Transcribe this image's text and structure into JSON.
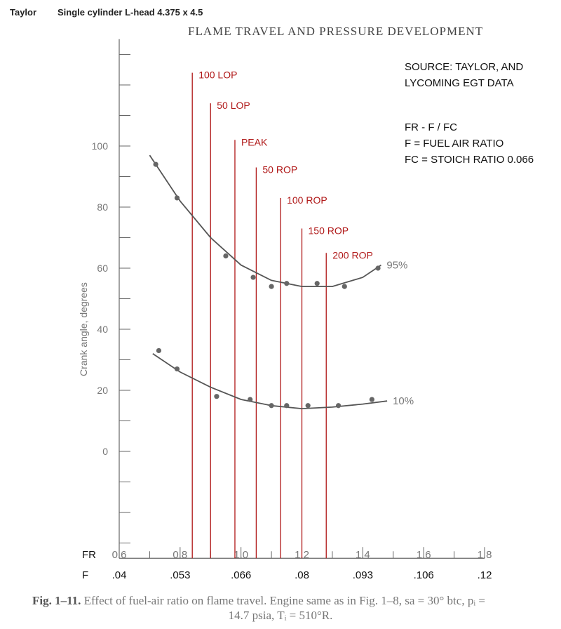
{
  "header": {
    "author": "Taylor",
    "engine": "Single cylinder L-head 4.375 x 4.5"
  },
  "notes": {
    "source_line1": "SOURCE: TAYLOR, AND",
    "source_line2": "LYCOMING EGT DATA",
    "def_fr": "FR - F / FC",
    "def_f": "F = FUEL AIR RATIO",
    "def_fc": "FC = STOICH RATIO 0.066"
  },
  "caption": {
    "fig_label": "Fig. 1–11.",
    "line1_text": " Effect of fuel-air ratio on flame travel. Engine same as in Fig. 1–8, sa = 30° btc, pᵢ =",
    "line2": "14.7 psia, Tᵢ = 510°R."
  },
  "colors": {
    "marker_line": "#b01818",
    "marker_text": "#b01818",
    "curve": "#555555",
    "axis": "#666666"
  },
  "chart_data": {
    "type": "scatter",
    "title": "FLAME TRAVEL AND PRESSURE DEVELOPMENT",
    "xlabel": "",
    "ylabel": "Crank angle, degrees",
    "xlim": [
      0.6,
      1.8
    ],
    "ylim": [
      -35,
      135
    ],
    "y_ticks": [
      0,
      20,
      40,
      60,
      80,
      100
    ],
    "x_axis_rows": [
      {
        "label": "FR",
        "values": [
          "0.6",
          "0.8",
          "1.0",
          "1.2",
          "1.4",
          "1.6",
          "1.8"
        ],
        "positions": [
          0.6,
          0.8,
          1.0,
          1.2,
          1.4,
          1.6,
          1.8
        ]
      },
      {
        "label": "F",
        "values": [
          ".04",
          ".053",
          ".066",
          ".08",
          ".093",
          ".106",
          ".12"
        ],
        "positions": [
          0.6,
          0.8,
          1.0,
          1.2,
          1.4,
          1.6,
          1.8
        ]
      }
    ],
    "series": [
      {
        "name": "95%",
        "points": [
          {
            "x": 0.72,
            "y": 94
          },
          {
            "x": 0.79,
            "y": 83
          },
          {
            "x": 0.95,
            "y": 64
          },
          {
            "x": 1.04,
            "y": 57
          },
          {
            "x": 1.1,
            "y": 54
          },
          {
            "x": 1.15,
            "y": 55
          },
          {
            "x": 1.25,
            "y": 55
          },
          {
            "x": 1.34,
            "y": 54
          },
          {
            "x": 1.45,
            "y": 60
          }
        ],
        "curve": [
          {
            "x": 0.7,
            "y": 97
          },
          {
            "x": 0.8,
            "y": 82
          },
          {
            "x": 0.9,
            "y": 70
          },
          {
            "x": 1.0,
            "y": 61
          },
          {
            "x": 1.1,
            "y": 56
          },
          {
            "x": 1.2,
            "y": 54
          },
          {
            "x": 1.3,
            "y": 54
          },
          {
            "x": 1.4,
            "y": 57
          },
          {
            "x": 1.46,
            "y": 61
          }
        ]
      },
      {
        "name": "10%",
        "points": [
          {
            "x": 0.73,
            "y": 33
          },
          {
            "x": 0.79,
            "y": 27
          },
          {
            "x": 0.92,
            "y": 18
          },
          {
            "x": 1.03,
            "y": 17
          },
          {
            "x": 1.1,
            "y": 15
          },
          {
            "x": 1.15,
            "y": 15
          },
          {
            "x": 1.22,
            "y": 15
          },
          {
            "x": 1.32,
            "y": 15
          },
          {
            "x": 1.43,
            "y": 17
          }
        ],
        "curve": [
          {
            "x": 0.71,
            "y": 32
          },
          {
            "x": 0.8,
            "y": 26
          },
          {
            "x": 0.9,
            "y": 21
          },
          {
            "x": 1.0,
            "y": 17
          },
          {
            "x": 1.1,
            "y": 15
          },
          {
            "x": 1.2,
            "y": 14
          },
          {
            "x": 1.3,
            "y": 14.5
          },
          {
            "x": 1.4,
            "y": 15.5
          },
          {
            "x": 1.48,
            "y": 16.5
          }
        ]
      }
    ],
    "reference_lines": [
      {
        "label": "100 LOP",
        "x": 0.84,
        "y_top": 124
      },
      {
        "label": "50 LOP",
        "x": 0.9,
        "y_top": 114
      },
      {
        "label": "PEAK",
        "x": 0.98,
        "y_top": 102
      },
      {
        "label": "50 ROP",
        "x": 1.05,
        "y_top": 93
      },
      {
        "label": "100 ROP",
        "x": 1.13,
        "y_top": 83
      },
      {
        "label": "150 ROP",
        "x": 1.2,
        "y_top": 73
      },
      {
        "label": "200 ROP",
        "x": 1.28,
        "y_top": 65
      }
    ]
  }
}
